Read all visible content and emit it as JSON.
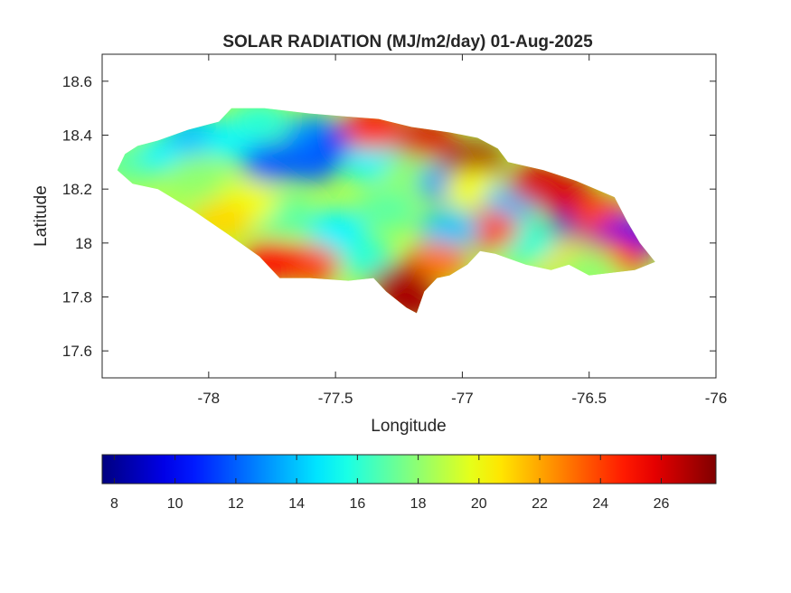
{
  "chart_data": {
    "type": "heatmap",
    "title": "SOLAR RADIATION (MJ/m2/day) 01-Aug-2025",
    "xlabel": "Longitude",
    "ylabel": "Latitude",
    "xlim": [
      -78.42,
      -76.0
    ],
    "ylim": [
      17.5,
      18.7
    ],
    "xticks": [
      -78,
      -77.5,
      -77,
      -76.5,
      -76
    ],
    "xtick_labels": [
      "-78",
      "-77.5",
      "-77",
      "-76.5",
      "-76"
    ],
    "yticks": [
      17.6,
      17.8,
      18,
      18.2,
      18.4,
      18.6
    ],
    "ytick_labels": [
      "17.6",
      "17.8",
      "18",
      "18.2",
      "18.4",
      "18.6"
    ],
    "colormap": "jet",
    "colorbar": {
      "orientation": "horizontal",
      "position": "bottom",
      "clim": [
        7.6,
        27.8
      ],
      "ticks": [
        8,
        10,
        12,
        14,
        16,
        18,
        20,
        22,
        24,
        26
      ],
      "tick_labels": [
        "8",
        "10",
        "12",
        "14",
        "16",
        "18",
        "20",
        "22",
        "24",
        "26"
      ]
    },
    "region_outline": [
      [
        -78.36,
        18.27
      ],
      [
        -78.33,
        18.33
      ],
      [
        -78.28,
        18.36
      ],
      [
        -78.2,
        18.38
      ],
      [
        -78.08,
        18.42
      ],
      [
        -77.96,
        18.45
      ],
      [
        -77.91,
        18.5
      ],
      [
        -77.78,
        18.5
      ],
      [
        -77.6,
        18.48
      ],
      [
        -77.47,
        18.47
      ],
      [
        -77.33,
        18.46
      ],
      [
        -77.2,
        18.43
      ],
      [
        -77.05,
        18.41
      ],
      [
        -76.94,
        18.39
      ],
      [
        -76.86,
        18.35
      ],
      [
        -76.82,
        18.3
      ],
      [
        -76.68,
        18.27
      ],
      [
        -76.55,
        18.23
      ],
      [
        -76.4,
        18.17
      ],
      [
        -76.35,
        18.08
      ],
      [
        -76.3,
        18.0
      ],
      [
        -76.24,
        17.93
      ],
      [
        -76.32,
        17.9
      ],
      [
        -76.5,
        17.88
      ],
      [
        -76.58,
        17.92
      ],
      [
        -76.65,
        17.9
      ],
      [
        -76.75,
        17.92
      ],
      [
        -76.87,
        17.96
      ],
      [
        -76.93,
        17.97
      ],
      [
        -76.98,
        17.92
      ],
      [
        -77.05,
        17.88
      ],
      [
        -77.1,
        17.87
      ],
      [
        -77.15,
        17.82
      ],
      [
        -77.18,
        17.74
      ],
      [
        -77.22,
        17.76
      ],
      [
        -77.3,
        17.82
      ],
      [
        -77.35,
        17.87
      ],
      [
        -77.45,
        17.86
      ],
      [
        -77.6,
        17.87
      ],
      [
        -77.72,
        17.87
      ],
      [
        -77.8,
        17.95
      ],
      [
        -77.92,
        18.03
      ],
      [
        -78.06,
        18.12
      ],
      [
        -78.13,
        18.16
      ],
      [
        -78.2,
        18.2
      ],
      [
        -78.3,
        18.22
      ],
      [
        -78.36,
        18.27
      ]
    ],
    "field_samples": [
      {
        "lon": -78.3,
        "lat": 18.3,
        "value": 17
      },
      {
        "lon": -78.15,
        "lat": 18.33,
        "value": 15
      },
      {
        "lon": -78.05,
        "lat": 18.25,
        "value": 18
      },
      {
        "lon": -78.05,
        "lat": 18.4,
        "value": 14
      },
      {
        "lon": -77.9,
        "lat": 18.38,
        "value": 15
      },
      {
        "lon": -77.75,
        "lat": 18.3,
        "value": 12
      },
      {
        "lon": -77.8,
        "lat": 18.45,
        "value": 16
      },
      {
        "lon": -77.58,
        "lat": 18.4,
        "value": 13
      },
      {
        "lon": -77.45,
        "lat": 18.37,
        "value": 10
      },
      {
        "lon": -77.6,
        "lat": 18.3,
        "value": 12
      },
      {
        "lon": -77.35,
        "lat": 18.3,
        "value": 15
      },
      {
        "lon": -77.35,
        "lat": 18.42,
        "value": 25
      },
      {
        "lon": -77.15,
        "lat": 18.38,
        "value": 26
      },
      {
        "lon": -77.2,
        "lat": 18.25,
        "value": 18
      },
      {
        "lon": -77.05,
        "lat": 18.22,
        "value": 13
      },
      {
        "lon": -76.95,
        "lat": 18.3,
        "value": 27
      },
      {
        "lon": -76.95,
        "lat": 18.2,
        "value": 20
      },
      {
        "lon": -76.8,
        "lat": 18.15,
        "value": 14
      },
      {
        "lon": -76.7,
        "lat": 18.22,
        "value": 26
      },
      {
        "lon": -76.6,
        "lat": 18.18,
        "value": 26
      },
      {
        "lon": -76.55,
        "lat": 18.05,
        "value": 9
      },
      {
        "lon": -76.45,
        "lat": 18.1,
        "value": 24
      },
      {
        "lon": -76.35,
        "lat": 18.02,
        "value": 10
      },
      {
        "lon": -76.4,
        "lat": 17.95,
        "value": 25
      },
      {
        "lon": -76.6,
        "lat": 17.95,
        "value": 21
      },
      {
        "lon": -76.75,
        "lat": 18.0,
        "value": 16
      },
      {
        "lon": -76.9,
        "lat": 18.05,
        "value": 24
      },
      {
        "lon": -77.05,
        "lat": 18.05,
        "value": 14
      },
      {
        "lon": -77.1,
        "lat": 17.93,
        "value": 23
      },
      {
        "lon": -77.25,
        "lat": 17.85,
        "value": 27
      },
      {
        "lon": -77.2,
        "lat": 17.78,
        "value": 27
      },
      {
        "lon": -77.4,
        "lat": 17.95,
        "value": 16
      },
      {
        "lon": -77.5,
        "lat": 18.05,
        "value": 15
      },
      {
        "lon": -77.6,
        "lat": 17.92,
        "value": 24
      },
      {
        "lon": -77.75,
        "lat": 17.93,
        "value": 25
      },
      {
        "lon": -77.7,
        "lat": 18.1,
        "value": 17
      },
      {
        "lon": -77.85,
        "lat": 18.15,
        "value": 20
      },
      {
        "lon": -77.95,
        "lat": 18.08,
        "value": 21
      },
      {
        "lon": -77.3,
        "lat": 18.12,
        "value": 17
      },
      {
        "lon": -76.5,
        "lat": 17.9,
        "value": 18
      }
    ]
  }
}
